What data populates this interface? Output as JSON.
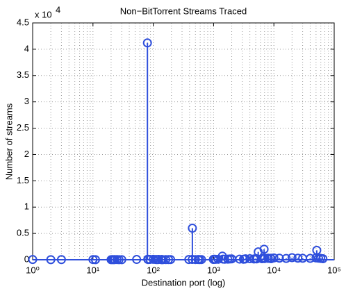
{
  "chart_data": {
    "type": "stem",
    "title": "Non−BitTorrent Streams Traced",
    "x_label": "Destination port (log)",
    "y_label": "Number of streams",
    "y_multiplier": "x 10",
    "y_multiplier_exponent": "4",
    "xscale": "log",
    "grid": true,
    "minor_grid": true,
    "color": "#2f4fdc",
    "xlim": [
      1,
      100000
    ],
    "xticks": [
      {
        "value": 1,
        "label": "10⁰"
      },
      {
        "value": 10,
        "label": "10¹"
      },
      {
        "value": 100,
        "label": "10²"
      },
      {
        "value": 1000,
        "label": "10³"
      },
      {
        "value": 10000,
        "label": "10⁴"
      },
      {
        "value": 100000,
        "label": "10⁵"
      }
    ],
    "ylim": [
      0,
      45000
    ],
    "yticks": [
      0,
      {
        "value": 5000,
        "label": "0.5"
      },
      {
        "value": 10000,
        "label": "1"
      },
      {
        "value": 15000,
        "label": "1.5"
      },
      {
        "value": 20000,
        "label": "2"
      },
      {
        "value": 25000,
        "label": "2.5"
      },
      {
        "value": 30000,
        "label": "3"
      },
      {
        "value": 35000,
        "label": "3.5"
      },
      {
        "value": 40000,
        "label": "4"
      },
      {
        "value": 45000,
        "label": "4.5"
      }
    ],
    "x": [
      1,
      2,
      3,
      10,
      11,
      20,
      21,
      22,
      23,
      25,
      27,
      30,
      53,
      80,
      81,
      82,
      88,
      100,
      110,
      113,
      119,
      123,
      135,
      137,
      139,
      143,
      161,
      179,
      194,
      389,
      443,
      445,
      500,
      554,
      587,
      631,
      993,
      995,
      1025,
      1080,
      1194,
      1400,
      1433,
      1521,
      1723,
      1863,
      2000,
      2703,
      3128,
      3306,
      3389,
      4000,
      4662,
      5000,
      5060,
      5190,
      5500,
      6346,
      6667,
      6881,
      6969,
      7000,
      8000,
      8080,
      8888,
      9000,
      10000,
      12345,
      16000,
      20000,
      25000,
      30000,
      40000,
      50000,
      51413,
      55000,
      60000,
      65000
    ],
    "values": [
      50,
      20,
      30,
      40,
      20,
      20,
      30,
      10,
      30,
      40,
      20,
      20,
      60,
      41200,
      100,
      40,
      60,
      80,
      50,
      40,
      30,
      60,
      40,
      30,
      50,
      20,
      30,
      30,
      40,
      50,
      60,
      6000,
      40,
      50,
      30,
      40,
      80,
      60,
      100,
      80,
      90,
      700,
      120,
      100,
      110,
      150,
      160,
      120,
      100,
      130,
      180,
      200,
      150,
      220,
      180,
      160,
      1500,
      200,
      250,
      2000,
      300,
      220,
      260,
      300,
      280,
      200,
      350,
      300,
      250,
      400,
      300,
      280,
      260,
      350,
      1800,
      300,
      250,
      200
    ]
  }
}
